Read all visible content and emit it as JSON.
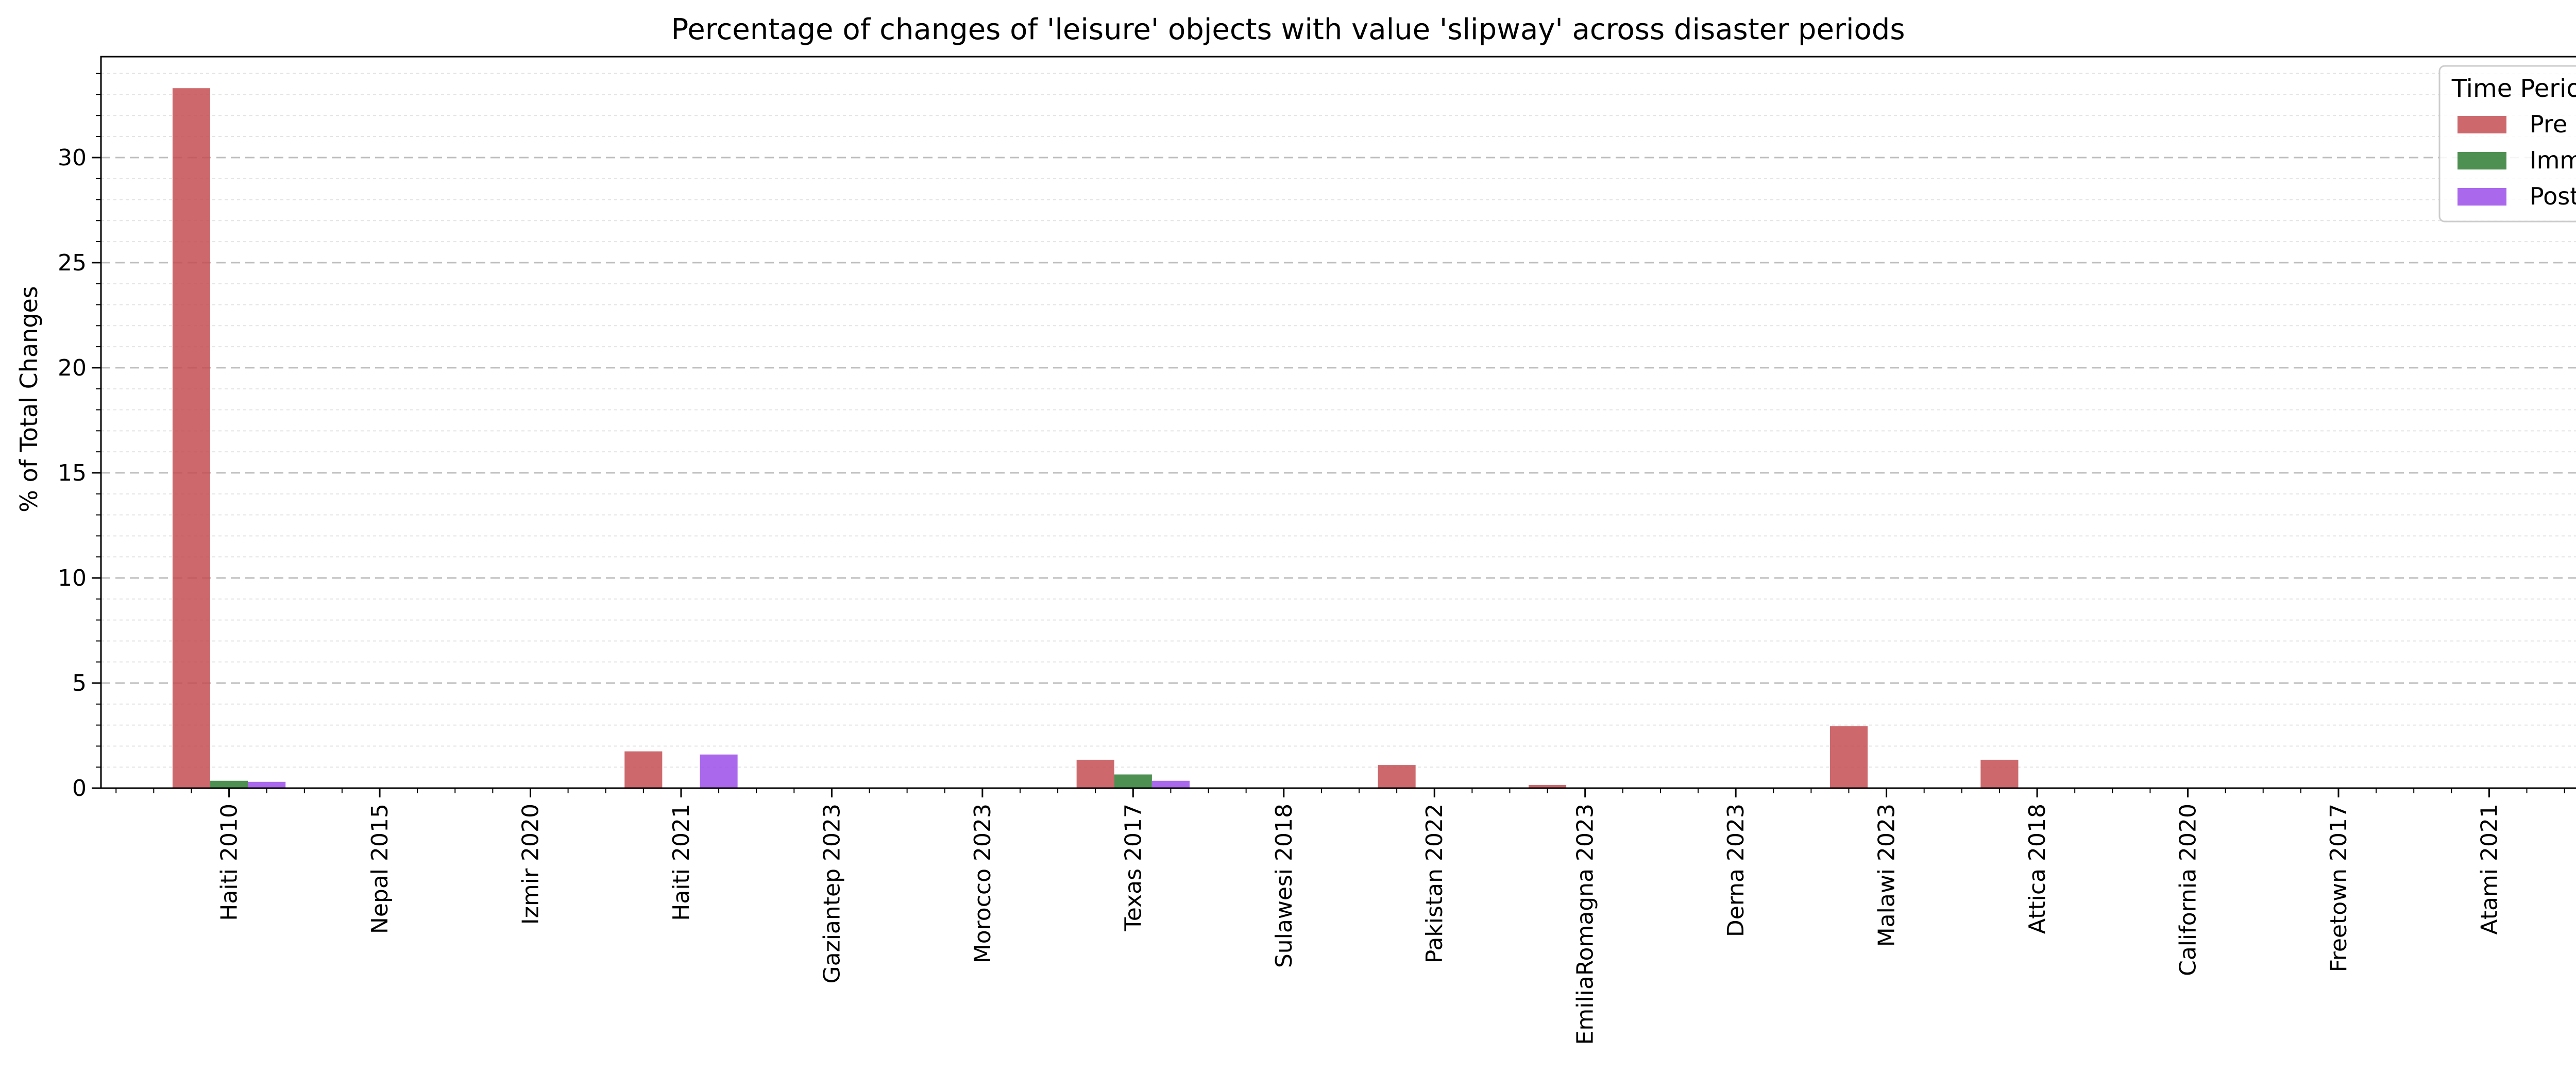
{
  "chart_data": {
    "type": "bar",
    "title": "Percentage of changes of 'leisure' objects with value 'slipway' across disaster periods",
    "xlabel": "",
    "ylabel": "% of Total Changes",
    "ylim": [
      0,
      34.8
    ],
    "yticks": [
      0,
      5,
      10,
      15,
      20,
      25,
      30
    ],
    "grid": true,
    "legend": {
      "title": "Time Period",
      "placement": "top-right"
    },
    "categories": [
      "Haiti 2010",
      "Nepal 2015",
      "Izmir 2020",
      "Haiti 2021",
      "Gaziantep 2023",
      "Morocco 2023",
      "Texas 2017",
      "Sulawesi 2018",
      "Pakistan 2022",
      "EmiliaRomagna 2023",
      "Derna 2023",
      "Malawi 2023",
      "Attica 2018",
      "California 2020",
      "Freetown 2017",
      "Atami 2021"
    ],
    "series": [
      {
        "name": "Pre",
        "color": "#c44e52",
        "values": [
          33.3,
          0,
          0,
          1.75,
          0,
          0,
          1.35,
          0,
          1.1,
          0.15,
          0,
          2.95,
          1.35,
          0,
          0,
          0
        ]
      },
      {
        "name": "Imm",
        "color": "#2e7d32",
        "values": [
          0.35,
          0,
          0,
          0,
          0,
          0,
          0.65,
          0,
          0,
          0,
          0,
          0,
          0,
          0,
          0,
          0
        ]
      },
      {
        "name": "Post",
        "color": "#9b4dea",
        "values": [
          0.3,
          0,
          0,
          1.6,
          0,
          0,
          0.35,
          0,
          0,
          0,
          0,
          0,
          0,
          0,
          0,
          0
        ]
      }
    ]
  }
}
